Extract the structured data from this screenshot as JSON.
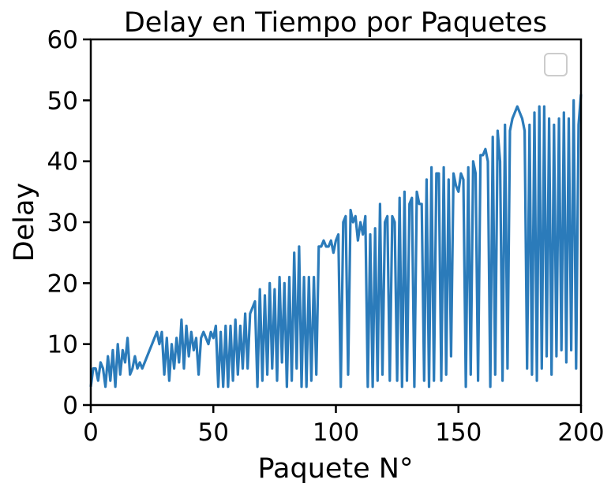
{
  "chart_data": {
    "type": "line",
    "title": "Delay en Tiempo por Paquetes",
    "xlabel": "Paquete N°",
    "ylabel": "Delay",
    "xlim": [
      0,
      200
    ],
    "ylim": [
      0,
      60
    ],
    "xticks": [
      "0",
      "50",
      "100",
      "150",
      "200"
    ],
    "yticks": [
      "0",
      "10",
      "20",
      "30",
      "40",
      "50",
      "60"
    ],
    "grid": false,
    "legend": "top-right (empty)",
    "series": [
      {
        "color": "#2b7bba",
        "x": [
          0,
          1,
          2,
          3,
          4,
          5,
          6,
          7,
          8,
          9,
          10,
          11,
          12,
          13,
          14,
          15,
          16,
          17,
          18,
          19,
          20,
          21,
          22,
          23,
          24,
          25,
          26,
          27,
          28,
          29,
          30,
          31,
          32,
          33,
          34,
          35,
          36,
          37,
          38,
          39,
          40,
          41,
          42,
          43,
          44,
          45,
          46,
          47,
          48,
          49,
          50,
          51,
          52,
          53,
          54,
          55,
          56,
          57,
          58,
          59,
          60,
          61,
          62,
          63,
          64,
          65,
          66,
          67,
          68,
          69,
          70,
          71,
          72,
          73,
          74,
          75,
          76,
          77,
          78,
          79,
          80,
          81,
          82,
          83,
          84,
          85,
          86,
          87,
          88,
          89,
          90,
          91,
          92,
          93,
          94,
          95,
          96,
          97,
          98,
          99,
          100,
          101,
          102,
          103,
          104,
          105,
          106,
          107,
          108,
          109,
          110,
          111,
          112,
          113,
          114,
          115,
          116,
          117,
          118,
          119,
          120,
          121,
          122,
          123,
          124,
          125,
          126,
          127,
          128,
          129,
          130,
          131,
          132,
          133,
          134,
          135,
          136,
          137,
          138,
          139,
          140,
          141,
          142,
          143,
          144,
          145,
          146,
          147,
          148,
          149,
          150,
          151,
          152,
          153,
          154,
          155,
          156,
          157,
          158,
          159,
          160,
          161,
          162,
          163,
          164,
          165,
          166,
          167,
          168,
          169,
          170,
          171,
          172,
          173,
          174,
          175,
          176,
          177,
          178,
          179,
          180,
          181,
          182,
          183,
          184,
          185,
          186,
          187,
          188,
          189,
          190,
          191,
          192,
          193,
          194,
          195,
          196,
          197,
          198,
          199,
          200
        ],
        "y": [
          3,
          6,
          6,
          4,
          7,
          6,
          3,
          8,
          4,
          9,
          3,
          10,
          5,
          9,
          7,
          11,
          5,
          6,
          8,
          6,
          7,
          6,
          7,
          8,
          9,
          10,
          11,
          12,
          10,
          12,
          5,
          11,
          4,
          10,
          6,
          11,
          7,
          14,
          6,
          13,
          8,
          12,
          9,
          11,
          5,
          11,
          12,
          11,
          10,
          12,
          11,
          13,
          3,
          12,
          3,
          13,
          3,
          13,
          4,
          14,
          5,
          13,
          6,
          15,
          6,
          15,
          16,
          17,
          3,
          19,
          4,
          18,
          5,
          20,
          6,
          19,
          4,
          21,
          7,
          20,
          3,
          21,
          4,
          25,
          6,
          26,
          3,
          21,
          3,
          21,
          4,
          21,
          5,
          26,
          26,
          27,
          26,
          26,
          27,
          25,
          27,
          28,
          3,
          30,
          31,
          5,
          32,
          30,
          31,
          27,
          30,
          28,
          31,
          3,
          28,
          3,
          29,
          4,
          33,
          5,
          30,
          31,
          4,
          31,
          30,
          4,
          34,
          3,
          35,
          4,
          33,
          34,
          3,
          35,
          33,
          33,
          4,
          37,
          3,
          39,
          4,
          38,
          38,
          4,
          39,
          5,
          37,
          8,
          38,
          36,
          35,
          38,
          37,
          3,
          39,
          5,
          40,
          38,
          4,
          41,
          41,
          42,
          40,
          3,
          44,
          5,
          45,
          40,
          4,
          46,
          6,
          45,
          47,
          48,
          49,
          48,
          47,
          45,
          6,
          46,
          5,
          48,
          4,
          49,
          6,
          49,
          8,
          47,
          5,
          46,
          8,
          47,
          9,
          48,
          7,
          47,
          9,
          50,
          6,
          46,
          51
        ]
      }
    ]
  }
}
